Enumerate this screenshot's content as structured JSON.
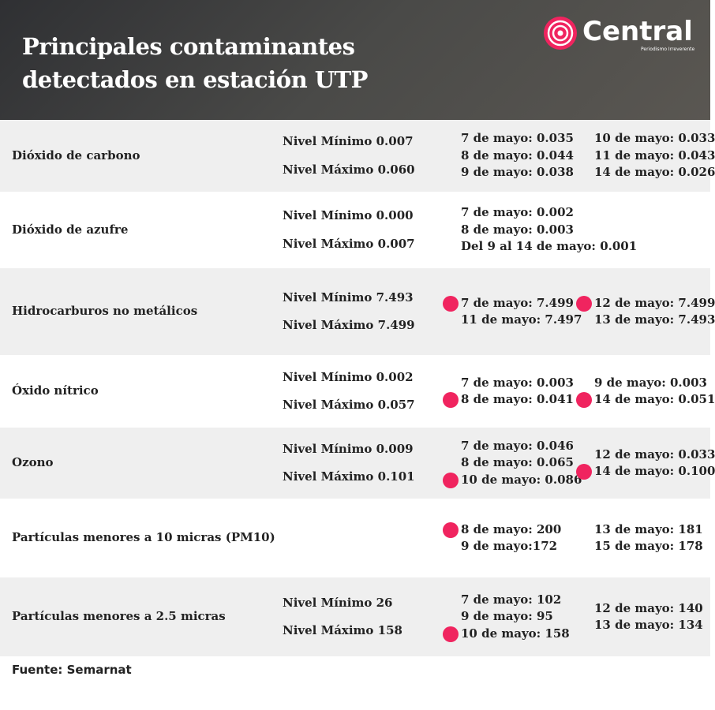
{
  "header": {
    "title_lines": [
      "Principales contaminantes",
      "detectados en estación UTP"
    ],
    "brand": "Central",
    "tagline": "Periodismo Irreverente"
  },
  "rows": [
    {
      "name": "Dióxido de carbono",
      "min": "Nivel Mínimo 0.007",
      "max": "Nivel Máximo 0.060",
      "col1": [
        {
          "text": "7 de mayo: 0.035",
          "dot": false
        },
        {
          "text": "8 de mayo: 0.044",
          "dot": false
        },
        {
          "text": "9 de mayo: 0.038",
          "dot": false
        }
      ],
      "col2": [
        {
          "text": "10 de mayo: 0.033",
          "dot": false
        },
        {
          "text": "11 de mayo: 0.043",
          "dot": false
        },
        {
          "text": "14 de mayo: 0.026",
          "dot": false
        }
      ]
    },
    {
      "name": "Dióxido de azufre",
      "min": "Nivel Mínimo 0.000",
      "max": "Nivel Máximo 0.007",
      "col1": [
        {
          "text": "7 de mayo: 0.002",
          "dot": false
        },
        {
          "text": "8 de mayo: 0.003",
          "dot": false
        },
        {
          "text": "Del 9 al 14 de mayo: 0.001",
          "dot": false
        }
      ],
      "col2": []
    },
    {
      "name": "Hidrocarburos no metálicos",
      "min": "Nivel Mínimo 7.493",
      "max": "Nivel Máximo 7.499",
      "col1": [
        {
          "text": "7 de mayo: 7.499",
          "dot": true
        },
        {
          "text": "11 de mayo: 7.497",
          "dot": false
        }
      ],
      "col2": [
        {
          "text": "12 de mayo: 7.499",
          "dot": true
        },
        {
          "text": "13 de mayo: 7.493",
          "dot": false
        }
      ]
    },
    {
      "name": "Óxido nítrico",
      "min": "Nivel Mínimo 0.002",
      "max": "Nivel Máximo 0.057",
      "col1": [
        {
          "text": "7 de mayo: 0.003",
          "dot": false
        },
        {
          "text": "8 de mayo: 0.041",
          "dot": true
        }
      ],
      "col2": [
        {
          "text": "9 de mayo: 0.003",
          "dot": false
        },
        {
          "text": "14 de mayo: 0.051",
          "dot": true
        }
      ]
    },
    {
      "name": "Ozono",
      "min": "Nivel Mínimo 0.009",
      "max": "Nivel Máximo 0.101",
      "col1": [
        {
          "text": "7 de mayo: 0.046",
          "dot": false
        },
        {
          "text": "8 de mayo: 0.065",
          "dot": false
        },
        {
          "text": "10 de mayo: 0.086",
          "dot": true
        }
      ],
      "col2": [
        {
          "text": "12 de mayo: 0.033",
          "dot": false
        },
        {
          "text": "14 de mayo: 0.100",
          "dot": true
        }
      ]
    },
    {
      "name": "Partículas menores a 10 micras (PM10)",
      "min": null,
      "max": null,
      "col1": [
        {
          "text": "8 de mayo: 200",
          "dot": true
        },
        {
          "text": "9 de mayo:172",
          "dot": false
        }
      ],
      "col2": [
        {
          "text": "13 de mayo: 181",
          "dot": false
        },
        {
          "text": "15 de mayo: 178",
          "dot": false
        }
      ]
    },
    {
      "name": "Partículas menores a 2.5 micras",
      "min": "Nivel Mínimo 26",
      "max": "Nivel Máximo 158",
      "col1": [
        {
          "text": "7 de mayo: 102",
          "dot": false
        },
        {
          "text": "9 de mayo: 95",
          "dot": false
        },
        {
          "text": "10 de mayo: 158",
          "dot": true
        }
      ],
      "col2": [
        {
          "text": "12 de mayo: 140",
          "dot": false
        },
        {
          "text": "13 de mayo: 134",
          "dot": false
        }
      ]
    }
  ],
  "source": "Fuente: Semarnat"
}
